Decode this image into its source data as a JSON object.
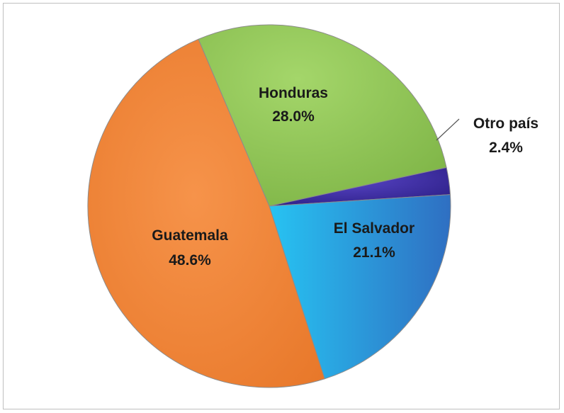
{
  "chart_data": {
    "type": "pie",
    "slices": [
      {
        "label": "Honduras",
        "value": 28.0,
        "value_label": "28.0%",
        "color": "#8fc653"
      },
      {
        "label": "Otro país",
        "value": 2.4,
        "value_label": "2.4%",
        "color": "#4030a8"
      },
      {
        "label": "El Salvador",
        "value": 21.1,
        "value_label": "21.1%",
        "color": "#2ab4e8"
      },
      {
        "label": "Guatemala",
        "value": 48.6,
        "value_label": "48.6%",
        "color": "#f08a3a"
      }
    ],
    "legend": "none",
    "data_labels": "category and percentage"
  }
}
